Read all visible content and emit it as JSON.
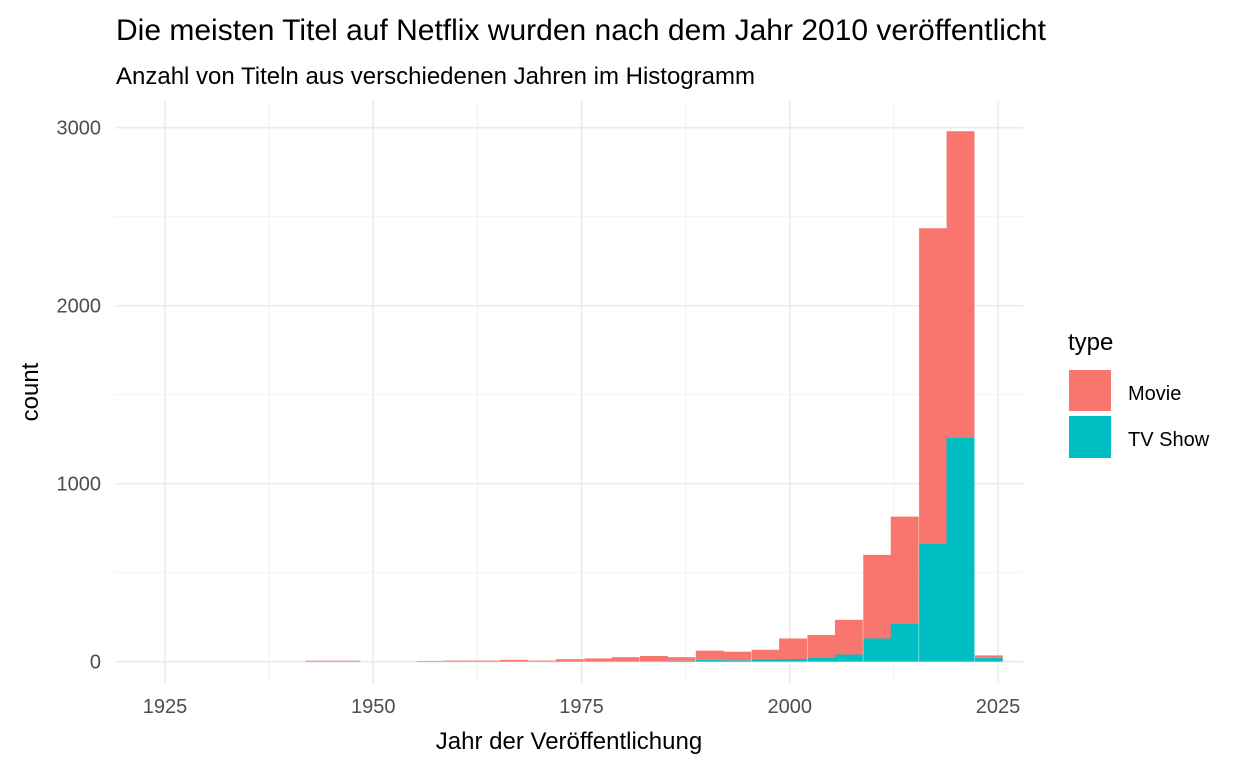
{
  "chart_data": {
    "type": "bar",
    "stacked": true,
    "title": "Die meisten Titel auf Netflix wurden nach dem Jahr 2010 veröffentlicht",
    "subtitle": "Anzahl von Titeln aus verschiedenen Jahren im Histogramm",
    "xlabel": "Jahr der Veröffentlichung",
    "ylabel": "count",
    "xlim": [
      1919,
      2028
    ],
    "ylim": [
      -120,
      3150
    ],
    "xticks": [
      1925,
      1950,
      1975,
      2000,
      2025
    ],
    "yticks": [
      0,
      1000,
      2000,
      3000
    ],
    "x_tick_labels": [
      "1925",
      "1950",
      "1975",
      "2000",
      "2025"
    ],
    "y_tick_labels": [
      "0",
      "1000",
      "2000",
      "3000"
    ],
    "grid": true,
    "legend": {
      "title": "type",
      "position": "right"
    },
    "bin_width": 3.35,
    "bins": [
      1943.5,
      1946.8,
      1956.9,
      1960.2,
      1963.6,
      1966.9,
      1970.3,
      1973.6,
      1977.0,
      1980.3,
      1983.7,
      1987.0,
      1990.4,
      1993.7,
      1997.1,
      2000.4,
      2003.8,
      2007.1,
      2010.5,
      2013.8,
      2017.2,
      2020.5,
      2023.9
    ],
    "series": [
      {
        "name": "Movie",
        "color": "#F8766D",
        "values": [
          5,
          5,
          4,
          6,
          6,
          10,
          6,
          14,
          18,
          25,
          32,
          20,
          52,
          48,
          55,
          115,
          125,
          195,
          470,
          600,
          1770,
          1720,
          15
        ]
      },
      {
        "name": "TV Show",
        "color": "#00BFC4",
        "values": [
          0,
          0,
          0,
          0,
          0,
          0,
          0,
          0,
          0,
          0,
          0,
          5,
          10,
          8,
          12,
          15,
          25,
          40,
          130,
          215,
          665,
          1260,
          20
        ]
      }
    ]
  }
}
